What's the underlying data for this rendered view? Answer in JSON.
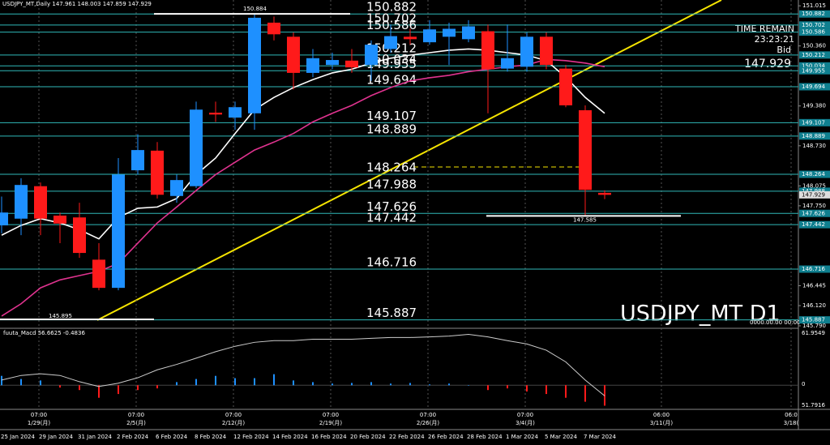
{
  "chart_data": {
    "type": "candlestick",
    "symbol": "USDJPY_MT,Daily",
    "watermark": "USDJPY_MT D1",
    "time_remain_label": "TIME REMAIN",
    "time_remain": "23:23:21",
    "bid_label": "Bid",
    "empty_time": "0000.00.00 00:00",
    "categories": [
      "25 Jan 2024",
      null,
      "29 Jan 2024",
      null,
      "31 Jan 2024",
      null,
      "2 Feb 2024",
      null,
      "6 Feb 2024",
      null,
      "8 Feb 2024",
      null,
      "12 Feb 2024",
      null,
      "14 Feb 2024",
      null,
      "16 Feb 2024",
      null,
      "20 Feb 2024",
      null,
      "22 Feb 2024",
      null,
      "26 Feb 2024",
      null,
      "28 Feb 2024",
      null,
      "1 Mar 2024",
      null,
      "5 Mar 2024",
      null,
      "7 Mar 2024",
      null
    ],
    "ohlc": [
      [
        147.43,
        147.9,
        147.3,
        147.64
      ],
      [
        147.54,
        148.2,
        147.27,
        148.09
      ],
      [
        148.07,
        148.13,
        147.27,
        147.54
      ],
      [
        147.59,
        147.64,
        147.14,
        147.46
      ],
      [
        147.56,
        147.8,
        146.9,
        146.98
      ],
      [
        146.87,
        147.14,
        146.37,
        146.41
      ],
      [
        146.41,
        148.53,
        146.37,
        148.26
      ],
      [
        148.33,
        148.92,
        148.26,
        148.66
      ],
      [
        148.65,
        148.79,
        147.87,
        147.93
      ],
      [
        147.91,
        148.26,
        147.8,
        148.17
      ],
      [
        148.07,
        149.45,
        148.04,
        149.32
      ],
      [
        149.27,
        149.45,
        149.12,
        149.24
      ],
      [
        149.19,
        149.45,
        148.99,
        149.36
      ],
      [
        149.26,
        150.884,
        148.99,
        150.82
      ],
      [
        150.74,
        150.84,
        150.45,
        150.55
      ],
      [
        150.51,
        150.58,
        149.65,
        149.92
      ],
      [
        149.92,
        150.31,
        149.85,
        150.16
      ],
      [
        150.05,
        150.25,
        149.98,
        150.13
      ],
      [
        150.12,
        150.31,
        149.92,
        150.01
      ],
      [
        150.05,
        150.45,
        149.79,
        150.38
      ],
      [
        150.31,
        150.71,
        150.25,
        150.52
      ],
      [
        150.51,
        150.64,
        150.38,
        150.47
      ],
      [
        150.42,
        150.78,
        150.38,
        150.63
      ],
      [
        150.51,
        150.74,
        150.05,
        150.64
      ],
      [
        150.47,
        150.78,
        150.42,
        150.68
      ],
      [
        150.6,
        150.71,
        149.26,
        149.98
      ],
      [
        149.99,
        150.71,
        149.94,
        150.16
      ],
      [
        150.02,
        150.58,
        149.94,
        150.51
      ],
      [
        150.51,
        150.58,
        149.98,
        150.05
      ],
      [
        149.99,
        150.05,
        149.36,
        149.39
      ],
      [
        149.31,
        149.39,
        147.585,
        148.01
      ],
      [
        147.961,
        148.003,
        147.859,
        147.929
      ]
    ],
    "up_color": "#1e90ff",
    "down_color": "#ff1a1a",
    "series": [
      {
        "color": "#ffffff",
        "values": [
          147.27,
          147.43,
          147.54,
          147.47,
          147.36,
          147.21,
          147.56,
          147.71,
          147.73,
          147.87,
          148.26,
          148.53,
          148.93,
          149.32,
          149.52,
          149.68,
          149.81,
          149.92,
          149.98,
          150.08,
          150.16,
          150.21,
          150.25,
          150.29,
          150.31,
          150.29,
          150.25,
          150.21,
          150.12,
          149.85,
          149.52,
          149.26
        ]
      },
      {
        "color": "#e0338f",
        "values": [
          145.95,
          146.15,
          146.41,
          146.54,
          146.61,
          146.68,
          146.81,
          147.14,
          147.47,
          147.73,
          148.0,
          148.26,
          148.46,
          148.66,
          148.79,
          148.93,
          149.12,
          149.26,
          149.39,
          149.55,
          149.68,
          149.79,
          149.84,
          149.88,
          149.94,
          149.98,
          150.02,
          150.05,
          150.14,
          150.12,
          150.08,
          150.02
        ]
      }
    ],
    "levels": [
      150.882,
      150.702,
      150.586,
      150.212,
      150.034,
      149.955,
      149.694,
      149.107,
      148.889,
      148.264,
      147.988,
      147.626,
      147.442,
      146.716,
      145.887
    ],
    "level_color": "#2fb8b8",
    "markers": [
      145.895
    ],
    "ylim": [
      145.75,
      151.11
    ],
    "yticks": [
      151.015,
      {
        "value": 150.36,
        "label": "150.360"
      },
      {
        "value": 149.38,
        "label": "149.380"
      },
      {
        "value": 148.73,
        "label": "148.730"
      },
      148.075,
      {
        "value": 147.75,
        "label": "147.750"
      },
      146.445,
      {
        "value": 146.12,
        "label": "146.120"
      },
      {
        "value": 145.79,
        "label": "145.790"
      }
    ],
    "time_labels": [
      {
        "time": "07:00",
        "date": "1/29(月)"
      },
      {
        "time": "07:00",
        "date": "2/5(月)"
      },
      {
        "time": "07:00",
        "date": "2/12(月)"
      },
      {
        "time": "07:00",
        "date": "2/19(月)"
      },
      {
        "time": "07:00",
        "date": "2/26(月)"
      },
      {
        "time": "07:00",
        "date": "3/4(月)"
      },
      {
        "time": "06:00",
        "date": "3/11(月)"
      },
      {
        "time": "06:0",
        "date": "3/18("
      }
    ],
    "macd": {
      "title": "fuuta_Macd 56.6625 -0.4836",
      "scale_labels": [
        "61.9549",
        "0",
        "51.7916"
      ],
      "ylim": [
        -1.0,
        2.5
      ],
      "line": [
        0.25,
        0.47,
        0.55,
        0.47,
        0.17,
        -0.06,
        0.1,
        0.36,
        0.74,
        1.0,
        1.3,
        1.61,
        1.87,
        2.06,
        2.14,
        2.14,
        2.21,
        2.21,
        2.21,
        2.25,
        2.29,
        2.29,
        2.32,
        2.36,
        2.44,
        2.32,
        2.14,
        1.98,
        1.68,
        1.12,
        0.25,
        -0.51
      ],
      "histogram": [
        0.45,
        0.3,
        0.23,
        -0.11,
        -0.23,
        -0.6,
        -0.42,
        -0.23,
        -0.15,
        0.15,
        0.3,
        0.45,
        0.34,
        0.34,
        0.53,
        0.23,
        0.15,
        0.08,
        0.11,
        0.15,
        0.08,
        0.11,
        0.04,
        0.08,
        0,
        -0.23,
        -0.15,
        -0.3,
        -0.42,
        -0.6,
        -0.79,
        -0.98
      ]
    }
  }
}
